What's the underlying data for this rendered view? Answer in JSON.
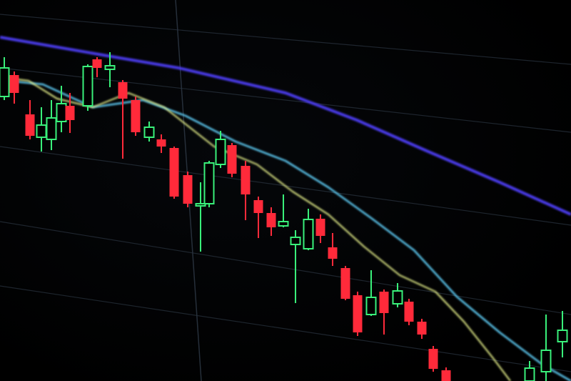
{
  "colors": {
    "background": "#000000",
    "bearish_candle": "#ff2a3a",
    "bullish_candle": "#39f07a",
    "ma_slow": "#4a3be8",
    "ma_mid": "#5cc8f0",
    "ma_fast": "#e6f08a",
    "grid": "#2a3440"
  }
}
